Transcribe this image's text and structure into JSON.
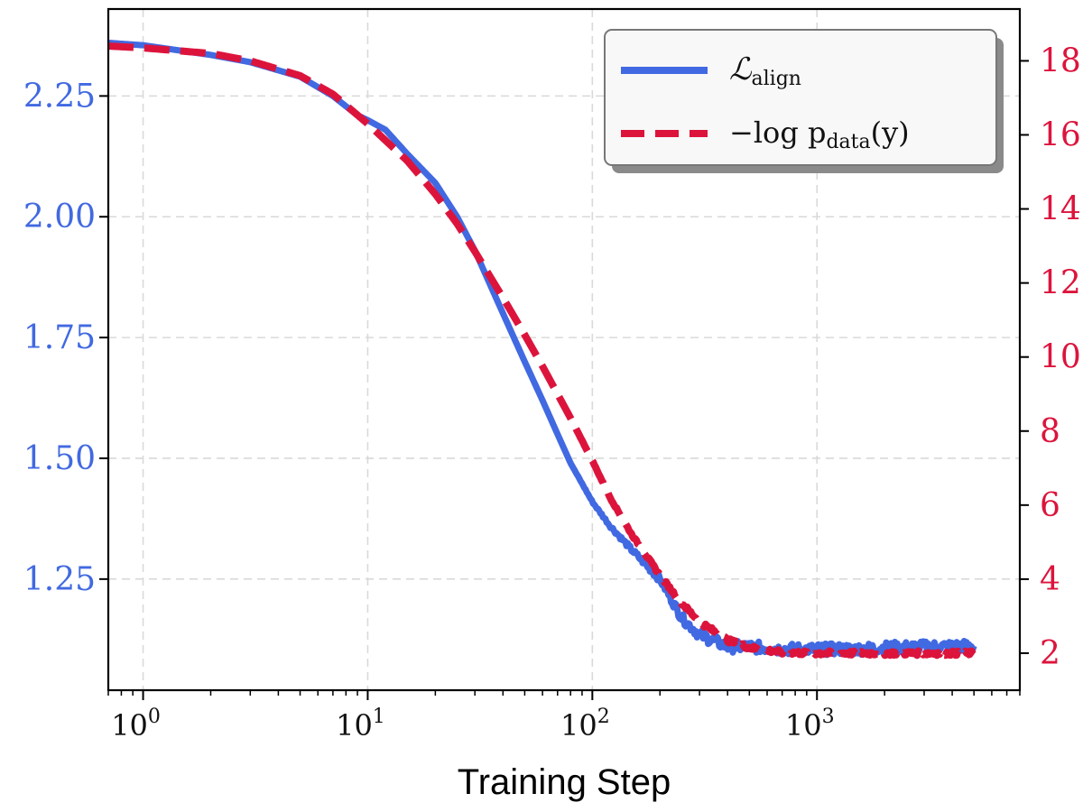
{
  "chart_data": {
    "type": "line",
    "title": "",
    "xlabel": "Training Step",
    "xscale": "log",
    "xlim": [
      0.7,
      8000
    ],
    "x_ticks": [
      {
        "value": 1,
        "base": "10",
        "exp": "0"
      },
      {
        "value": 10,
        "base": "10",
        "exp": "1"
      },
      {
        "value": 100,
        "base": "10",
        "exp": "2"
      },
      {
        "value": 1000,
        "base": "10",
        "exp": "3"
      }
    ],
    "left_axis": {
      "ylim": [
        1.02,
        2.43
      ],
      "ticks": [
        1.25,
        1.5,
        1.75,
        2.0,
        2.25
      ],
      "tick_labels": [
        "1.25",
        "1.50",
        "1.75",
        "2.00",
        "2.25"
      ],
      "color": "#4169e1"
    },
    "right_axis": {
      "ylim": [
        1.0,
        19.4
      ],
      "ticks": [
        2,
        4,
        6,
        8,
        10,
        12,
        14,
        16,
        18
      ],
      "tick_labels": [
        "2",
        "4",
        "6",
        "8",
        "10",
        "12",
        "14",
        "16",
        "18"
      ],
      "color": "#dc143c"
    },
    "grid": true,
    "legend_position": "top-right",
    "series": [
      {
        "name": "L_align",
        "legend_main": "ℒ",
        "legend_sub": "align",
        "axis": "left",
        "style": "solid",
        "color": "#4169e1",
        "noise": 0.012,
        "x": [
          0.7,
          1,
          2,
          3,
          5,
          7,
          9,
          10,
          12,
          15,
          20,
          25,
          30,
          40,
          50,
          60,
          70,
          80,
          100,
          120,
          150,
          200,
          250,
          300,
          400,
          500,
          700,
          1000,
          1500,
          2000,
          3000,
          5000
        ],
        "values": [
          2.36,
          2.355,
          2.335,
          2.32,
          2.29,
          2.25,
          2.21,
          2.2,
          2.18,
          2.13,
          2.07,
          2.0,
          1.93,
          1.8,
          1.7,
          1.62,
          1.55,
          1.49,
          1.41,
          1.36,
          1.31,
          1.25,
          1.17,
          1.135,
          1.11,
          1.11,
          1.105,
          1.105,
          1.105,
          1.108,
          1.11,
          1.112
        ]
      },
      {
        "name": "-log p_data(y)",
        "legend_main": "−log p",
        "legend_sub": "data",
        "legend_tail": "(y)",
        "axis": "right",
        "style": "dashed",
        "color": "#dc143c",
        "noise": 0.06,
        "x": [
          0.7,
          1,
          2,
          3,
          5,
          7,
          10,
          15,
          20,
          25,
          30,
          40,
          50,
          60,
          70,
          80,
          100,
          120,
          150,
          200,
          250,
          300,
          400,
          500,
          700,
          1000,
          2000,
          5000
        ],
        "values": [
          18.4,
          18.35,
          18.2,
          18.0,
          17.6,
          17.1,
          16.3,
          15.3,
          14.4,
          13.6,
          12.85,
          11.6,
          10.6,
          9.75,
          9.0,
          8.35,
          7.2,
          6.2,
          5.2,
          4.1,
          3.35,
          2.85,
          2.35,
          2.15,
          2.02,
          2.0,
          2.0,
          2.0
        ]
      }
    ]
  }
}
